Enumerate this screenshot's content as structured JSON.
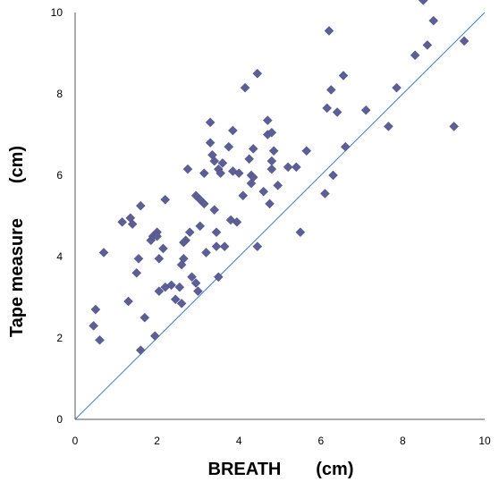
{
  "chart_data": {
    "type": "scatter",
    "title": "",
    "xlabel": "BREATH       (cm)",
    "ylabel": "Tape measure       (cm)",
    "xlim": [
      0,
      10
    ],
    "ylim": [
      0,
      10
    ],
    "x_ticks": [
      "0",
      "2",
      "4",
      "6",
      "8",
      "10"
    ],
    "y_ticks": [
      "0",
      "2",
      "4",
      "6",
      "8",
      "10"
    ],
    "grid": false,
    "legend": "none",
    "reference_line": {
      "from": [
        0,
        0
      ],
      "to": [
        10,
        10
      ]
    },
    "series": [
      {
        "marker": "diamond",
        "color": "#5E5E96",
        "points": [
          [
            0.5,
            2.7
          ],
          [
            0.45,
            2.3
          ],
          [
            0.6,
            1.95
          ],
          [
            0.7,
            4.1
          ],
          [
            1.15,
            4.85
          ],
          [
            1.35,
            4.95
          ],
          [
            1.4,
            4.8
          ],
          [
            1.3,
            2.9
          ],
          [
            1.55,
            3.95
          ],
          [
            1.5,
            3.6
          ],
          [
            1.6,
            5.25
          ],
          [
            1.7,
            2.5
          ],
          [
            1.6,
            1.7
          ],
          [
            1.85,
            4.4
          ],
          [
            1.9,
            4.5
          ],
          [
            2.0,
            4.6
          ],
          [
            2.0,
            4.5
          ],
          [
            1.95,
            2.05
          ],
          [
            2.05,
            3.95
          ],
          [
            2.05,
            3.15
          ],
          [
            2.2,
            5.4
          ],
          [
            2.15,
            4.2
          ],
          [
            2.2,
            3.25
          ],
          [
            2.35,
            3.3
          ],
          [
            2.45,
            2.95
          ],
          [
            2.55,
            3.25
          ],
          [
            2.6,
            2.85
          ],
          [
            2.6,
            3.8
          ],
          [
            2.65,
            3.95
          ],
          [
            2.7,
            4.4
          ],
          [
            2.65,
            4.35
          ],
          [
            2.75,
            6.15
          ],
          [
            2.8,
            4.6
          ],
          [
            2.85,
            3.5
          ],
          [
            2.95,
            3.35
          ],
          [
            2.95,
            5.5
          ],
          [
            3.0,
            3.15
          ],
          [
            3.05,
            4.75
          ],
          [
            3.05,
            5.4
          ],
          [
            3.15,
            5.3
          ],
          [
            3.15,
            6.05
          ],
          [
            3.2,
            4.1
          ],
          [
            3.3,
            7.3
          ],
          [
            3.3,
            6.8
          ],
          [
            3.35,
            6.5
          ],
          [
            3.4,
            5.15
          ],
          [
            3.4,
            6.35
          ],
          [
            3.45,
            4.6
          ],
          [
            3.45,
            4.25
          ],
          [
            3.5,
            3.5
          ],
          [
            3.5,
            6.15
          ],
          [
            3.55,
            6.05
          ],
          [
            3.6,
            6.3
          ],
          [
            3.65,
            4.25
          ],
          [
            3.75,
            6.7
          ],
          [
            3.8,
            4.9
          ],
          [
            3.85,
            7.1
          ],
          [
            3.85,
            6.1
          ],
          [
            3.95,
            4.85
          ],
          [
            4.0,
            6.05
          ],
          [
            4.1,
            5.5
          ],
          [
            4.15,
            8.15
          ],
          [
            4.25,
            6.4
          ],
          [
            4.3,
            6.0
          ],
          [
            4.3,
            5.8
          ],
          [
            4.35,
            5.95
          ],
          [
            4.35,
            6.65
          ],
          [
            4.45,
            8.5
          ],
          [
            4.45,
            4.25
          ],
          [
            4.6,
            5.6
          ],
          [
            4.7,
            7.35
          ],
          [
            4.7,
            7.0
          ],
          [
            4.75,
            5.3
          ],
          [
            4.8,
            7.05
          ],
          [
            4.8,
            6.35
          ],
          [
            4.8,
            6.15
          ],
          [
            4.85,
            6.6
          ],
          [
            4.95,
            5.75
          ],
          [
            5.2,
            6.2
          ],
          [
            5.4,
            6.2
          ],
          [
            5.5,
            4.6
          ],
          [
            5.65,
            6.6
          ],
          [
            6.1,
            5.55
          ],
          [
            6.15,
            7.65
          ],
          [
            6.2,
            9.55
          ],
          [
            6.25,
            8.1
          ],
          [
            6.3,
            6.0
          ],
          [
            6.4,
            7.55
          ],
          [
            6.55,
            8.45
          ],
          [
            6.6,
            6.7
          ],
          [
            7.1,
            7.6
          ],
          [
            7.65,
            7.2
          ],
          [
            7.85,
            8.15
          ],
          [
            8.3,
            8.95
          ],
          [
            8.5,
            10.3
          ],
          [
            8.6,
            9.2
          ],
          [
            8.75,
            9.8
          ],
          [
            9.25,
            7.2
          ],
          [
            9.5,
            9.3
          ]
        ]
      }
    ]
  }
}
